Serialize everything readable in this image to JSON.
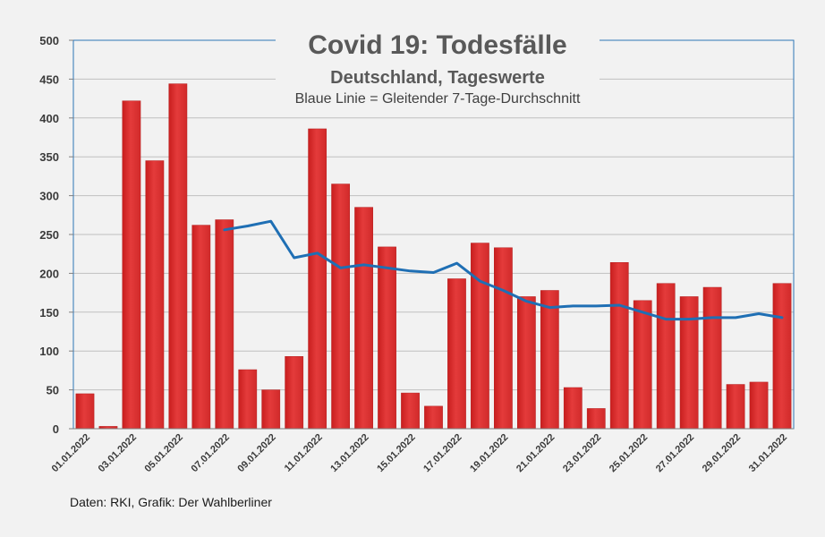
{
  "chart_data": {
    "type": "bar",
    "title": "Covid 19: Todesfälle",
    "subtitle": "Deutschland, Tageswerte",
    "annotation": "Blaue Linie = Gleitender 7-Tage-Durchschnitt",
    "source": "Daten: RKI, Grafik: Der Wahlberliner",
    "categories": [
      "01.01.2022",
      "02.01.2022",
      "03.01.2022",
      "04.01.2022",
      "05.01.2022",
      "06.01.2022",
      "07.01.2022",
      "08.01.2022",
      "09.01.2022",
      "10.01.2022",
      "11.01.2022",
      "12.01.2022",
      "13.01.2022",
      "14.01.2022",
      "15.01.2022",
      "16.01.2022",
      "17.01.2022",
      "18.01.2022",
      "19.01.2022",
      "20.01.2022",
      "21.01.2022",
      "22.01.2022",
      "23.01.2022",
      "24.01.2022",
      "25.01.2022",
      "26.01.2022",
      "27.01.2022",
      "28.01.2022",
      "29.01.2022",
      "30.01.2022",
      "31.01.2022"
    ],
    "x_tick_labels": [
      "01.01.2022",
      "03.01.2022",
      "05.01.2022",
      "07.01.2022",
      "09.01.2022",
      "11.01.2022",
      "13.01.2022",
      "15.01.2022",
      "17.01.2022",
      "19.01.2022",
      "21.01.2022",
      "23.01.2022",
      "25.01.2022",
      "27.01.2022",
      "29.01.2022",
      "31.01.2022"
    ],
    "series": [
      {
        "values": [
          45,
          3,
          422,
          345,
          444,
          262,
          269,
          76,
          50,
          93,
          386,
          315,
          285,
          234,
          46,
          29,
          193,
          239,
          233,
          170,
          178,
          53,
          26,
          214,
          165,
          187,
          170,
          182,
          57,
          60,
          187
        ]
      },
      {
        "values": [
          null,
          null,
          null,
          null,
          null,
          null,
          256,
          261,
          267,
          220,
          226,
          207,
          211,
          207,
          203,
          201,
          213,
          190,
          178,
          164,
          156,
          158,
          158,
          159,
          150,
          141,
          141,
          143,
          143,
          148,
          143
        ]
      }
    ],
    "ylim": [
      0,
      500
    ],
    "yticks": [
      0,
      50,
      100,
      150,
      200,
      250,
      300,
      350,
      400,
      450,
      500
    ],
    "grid": true,
    "colors": {
      "bar": "#e43b3b",
      "line": "#1f6fb4",
      "axis_border": "#2e75b6",
      "background": "#f2f2f2"
    }
  }
}
